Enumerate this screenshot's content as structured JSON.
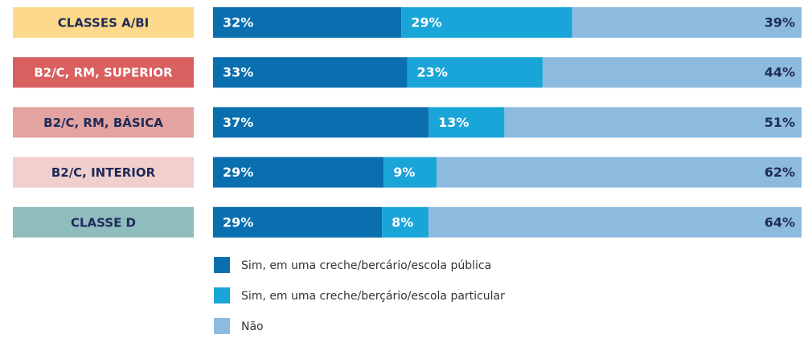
{
  "chart_data": {
    "type": "stacked-bar",
    "categories": [
      "CLASSES A/BI",
      "B2/C, RM, SUPERIOR",
      "B2/C, RM, BÁSICA",
      "B2/C, INTERIOR",
      "CLASSE D"
    ],
    "category_colors": [
      "#fdd98b",
      "#d9605f",
      "#e3a3a0",
      "#f0cfcc",
      "#8fbcbc"
    ],
    "category_text_colors": [
      "#1f2a5a",
      "#ffffff",
      "#1f2a5a",
      "#1f2a5a",
      "#1f2a5a"
    ],
    "series": [
      {
        "name": "Sim, em uma creche/bercário/escola pública",
        "color": "#0a6fae",
        "values": [
          32,
          33,
          37,
          29,
          29
        ],
        "value_labels": [
          "32%",
          "33%",
          "37%",
          "29%",
          "29%"
        ]
      },
      {
        "name": "Sim, em uma creche/berçário/escola particular",
        "color": "#1aa5d8",
        "values": [
          29,
          23,
          13,
          9,
          8
        ],
        "value_labels": [
          "29%",
          "23%",
          "13%",
          "9%",
          "8%"
        ]
      },
      {
        "name": "Não",
        "color": "#8dbbe0",
        "values": [
          39,
          44,
          51,
          62,
          64
        ],
        "value_labels": [
          "39%",
          "44%",
          "51%",
          "62%",
          "64%"
        ]
      }
    ]
  }
}
